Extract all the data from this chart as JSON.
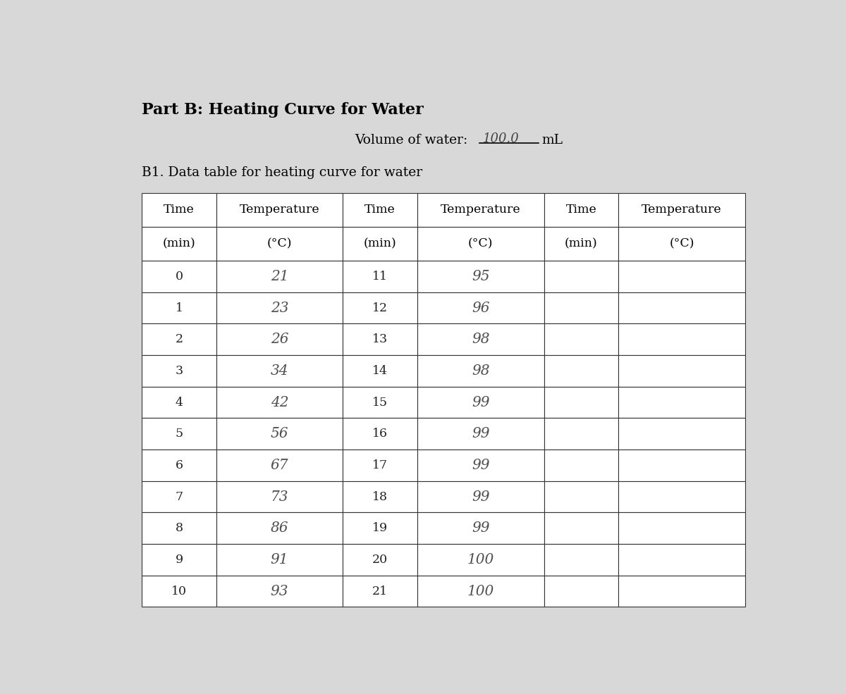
{
  "title": "Part B: Heating Curve for Water",
  "volume_label": "Volume of water:",
  "volume_value": "100.0",
  "volume_unit": "mL",
  "subtitle": "B1. Data table for heating curve for water",
  "bg_color": "#d8d8d8",
  "table_bg": "#ffffff",
  "data_col1_time": [
    "0",
    "1",
    "2",
    "3",
    "4",
    "5",
    "6",
    "7",
    "8",
    "9",
    "10"
  ],
  "data_col1_temp": [
    "21",
    "23",
    "26",
    "34",
    "42",
    "56",
    "67",
    "73",
    "86",
    "91",
    "93"
  ],
  "data_col2_time": [
    "11",
    "12",
    "13",
    "14",
    "15",
    "16",
    "17",
    "18",
    "19",
    "20",
    "21"
  ],
  "data_col2_temp": [
    "95",
    "96",
    "98",
    "98",
    "99",
    "99",
    "99",
    "99",
    "99",
    "100",
    "100"
  ],
  "data_col3_time": [
    "",
    "",
    "",
    "",
    "",
    "",
    "",
    "",
    "",
    "",
    ""
  ],
  "data_col3_temp": [
    "",
    "",
    "",
    "",
    "",
    "",
    "",
    "",
    "",
    "",
    ""
  ]
}
